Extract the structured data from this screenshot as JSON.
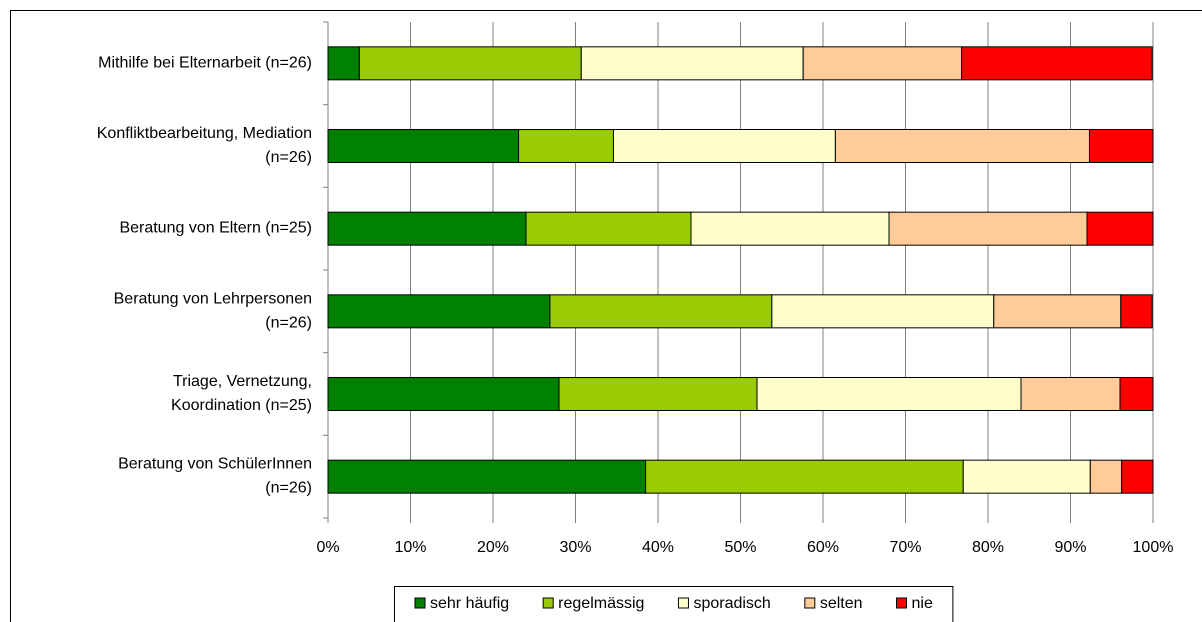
{
  "chart_data": {
    "type": "stacked_bar_horizontal",
    "categories": [
      "Mithilfe bei Elternarbeit (n=26)",
      "Konfliktbearbeitung, Mediation\n(n=26)",
      "Beratung von Eltern (n=25)",
      "Beratung von Lehrpersonen\n(n=26)",
      "Triage, Vernetzung,\nKoordination (n=25)",
      "Beratung von SchülerInnen\n(n=26)"
    ],
    "series": [
      {
        "name": "sehr häufig",
        "color": "#008000",
        "values": [
          3.8,
          23.1,
          24,
          26.9,
          28,
          38.5
        ]
      },
      {
        "name": "regelmässig",
        "color": "#99cc00",
        "values": [
          26.9,
          11.5,
          20,
          26.9,
          24,
          38.5
        ]
      },
      {
        "name": "sporadisch",
        "color": "#ffffcc",
        "values": [
          26.9,
          26.9,
          24,
          26.9,
          32,
          15.4
        ]
      },
      {
        "name": "selten",
        "color": "#ffcc99",
        "values": [
          19.2,
          30.8,
          24,
          15.4,
          12,
          3.8
        ]
      },
      {
        "name": "nie",
        "color": "#ff0000",
        "values": [
          23.1,
          7.7,
          8,
          3.8,
          4,
          3.8
        ]
      }
    ],
    "xlim": [
      0,
      100
    ],
    "xticks": [
      {
        "value": 0,
        "label": "0%"
      },
      {
        "value": 10,
        "label": "10%"
      },
      {
        "value": 20,
        "label": "20%"
      },
      {
        "value": 30,
        "label": "30%"
      },
      {
        "value": 40,
        "label": "40%"
      },
      {
        "value": 50,
        "label": "50%"
      },
      {
        "value": 60,
        "label": "60%"
      },
      {
        "value": 70,
        "label": "70%"
      },
      {
        "value": 80,
        "label": "80%"
      },
      {
        "value": 90,
        "label": "90%"
      },
      {
        "value": 100,
        "label": "100%"
      }
    ],
    "grid": true,
    "legend": "bottom"
  }
}
